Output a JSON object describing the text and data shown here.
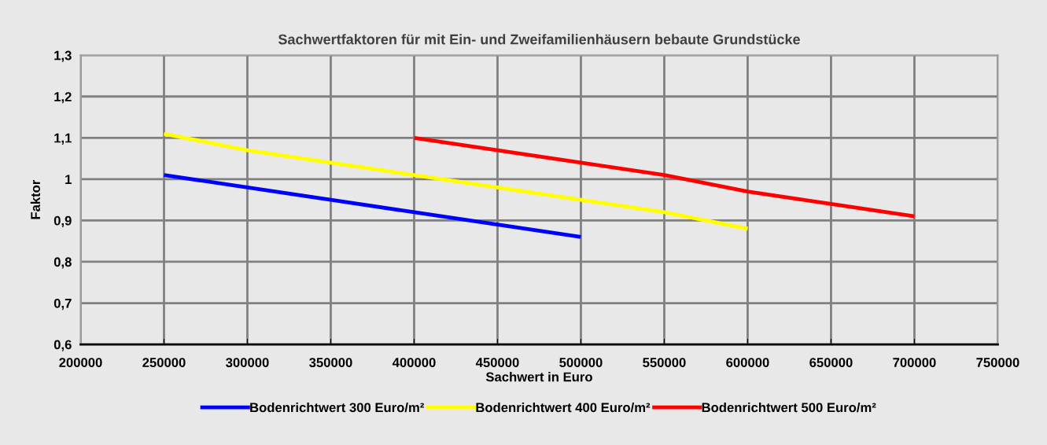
{
  "chart_data": {
    "type": "line",
    "title": "Sachwertfaktoren für mit Ein- und Zweifamilienhäusern bebaute Grundstücke",
    "xlabel": "Sachwert in Euro",
    "ylabel": "Faktor",
    "x": [
      250000,
      300000,
      350000,
      400000,
      450000,
      500000,
      550000,
      600000,
      650000,
      700000
    ],
    "series": [
      {
        "name": "Bodenrichtwert 300 Euro/m²",
        "color": "#0000ff",
        "values": [
          1.01,
          0.98,
          0.95,
          0.92,
          0.89,
          0.86,
          null,
          null,
          null,
          null
        ]
      },
      {
        "name": "Bodenrichtwert 400 Euro/m²",
        "color": "#ffff00",
        "values": [
          1.11,
          1.07,
          1.04,
          1.01,
          0.98,
          0.95,
          0.92,
          0.88,
          null,
          null
        ]
      },
      {
        "name": "Bodenrichtwert 500 Euro/m²",
        "color": "#ff0000",
        "values": [
          null,
          null,
          null,
          1.1,
          1.07,
          1.04,
          1.01,
          0.97,
          0.94,
          0.91
        ]
      }
    ],
    "xlim": [
      200000,
      750000
    ],
    "xticks": [
      200000,
      250000,
      300000,
      350000,
      400000,
      450000,
      500000,
      550000,
      600000,
      650000,
      700000,
      750000
    ],
    "ylim": [
      0.6,
      1.3
    ],
    "yticks": [
      {
        "value": 0.6,
        "label": "0,6"
      },
      {
        "value": 0.7,
        "label": "0,7"
      },
      {
        "value": 0.8,
        "label": "0,8"
      },
      {
        "value": 0.9,
        "label": "0,9"
      },
      {
        "value": 1,
        "label": "1"
      },
      {
        "value": 1.1,
        "label": "1,1"
      },
      {
        "value": 1.2,
        "label": "1,2"
      },
      {
        "value": 1.3,
        "label": "1,3"
      }
    ],
    "grid": true,
    "legend": "bottom",
    "marker": "none",
    "line_style": "solid"
  }
}
